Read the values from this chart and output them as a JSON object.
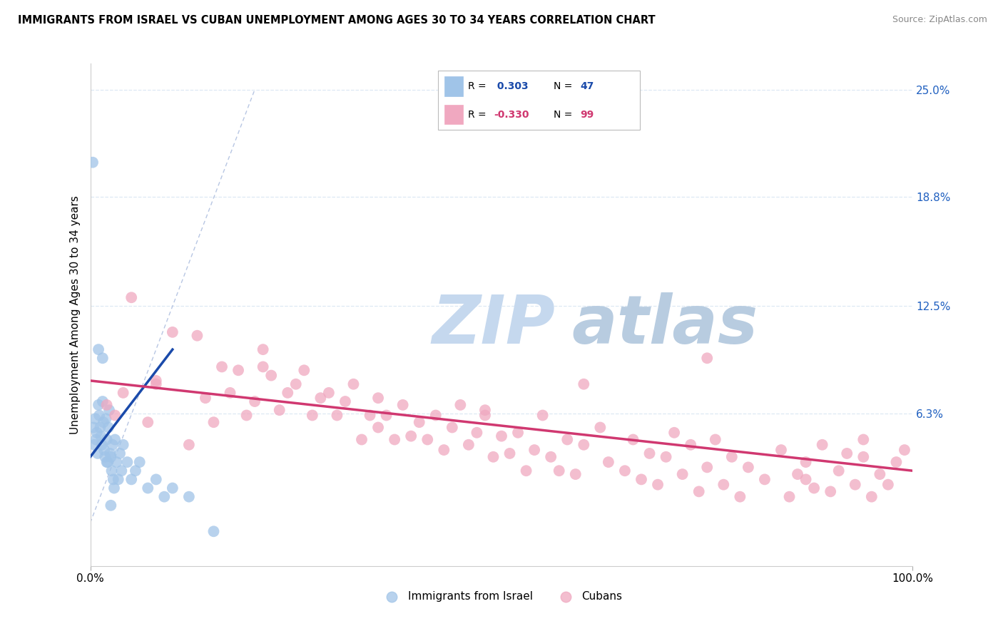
{
  "title": "IMMIGRANTS FROM ISRAEL VS CUBAN UNEMPLOYMENT AMONG AGES 30 TO 34 YEARS CORRELATION CHART",
  "source": "Source: ZipAtlas.com",
  "ylabel": "Unemployment Among Ages 30 to 34 years",
  "right_yticklabels": [
    "6.3%",
    "12.5%",
    "18.8%",
    "25.0%"
  ],
  "right_ytick_values": [
    0.063,
    0.125,
    0.188,
    0.25
  ],
  "blue_scatter_color": "#a0c4e8",
  "pink_scatter_color": "#f0a8c0",
  "blue_trend_color": "#1a4aaa",
  "pink_trend_color": "#d03870",
  "diag_color": "#b0c0e0",
  "watermark_color": "#d0dff0",
  "xmin": 0.0,
  "xmax": 100.0,
  "ymin": -0.025,
  "ymax": 0.265,
  "grid_color": "#dde8f4",
  "label_israel": "Immigrants from Israel",
  "label_cubans": "Cubans",
  "blue_r": " 0.303",
  "blue_n": "47",
  "pink_r": "-0.330",
  "pink_n": "99",
  "israel_x": [
    0.3,
    0.4,
    0.5,
    0.6,
    0.7,
    0.8,
    0.9,
    1.0,
    1.1,
    1.2,
    1.3,
    1.4,
    1.5,
    1.6,
    1.7,
    1.8,
    1.9,
    2.0,
    2.1,
    2.2,
    2.3,
    2.4,
    2.5,
    2.6,
    2.7,
    2.8,
    2.9,
    3.0,
    3.2,
    3.4,
    3.6,
    3.8,
    4.0,
    4.5,
    5.0,
    5.5,
    6.0,
    7.0,
    8.0,
    9.0,
    10.0,
    12.0,
    15.0,
    1.0,
    1.5,
    2.0,
    2.5
  ],
  "israel_y": [
    0.208,
    0.055,
    0.045,
    0.06,
    0.048,
    0.052,
    0.04,
    0.068,
    0.062,
    0.055,
    0.05,
    0.045,
    0.07,
    0.058,
    0.042,
    0.038,
    0.06,
    0.048,
    0.035,
    0.055,
    0.065,
    0.04,
    0.038,
    0.03,
    0.045,
    0.025,
    0.02,
    0.048,
    0.035,
    0.025,
    0.04,
    0.03,
    0.045,
    0.035,
    0.025,
    0.03,
    0.035,
    0.02,
    0.025,
    0.015,
    0.02,
    0.015,
    -0.005,
    0.1,
    0.095,
    0.035,
    0.01
  ],
  "cuba_x": [
    2,
    4,
    5,
    7,
    8,
    10,
    12,
    13,
    15,
    16,
    17,
    18,
    19,
    20,
    21,
    22,
    23,
    24,
    25,
    26,
    27,
    28,
    29,
    30,
    31,
    32,
    33,
    34,
    35,
    36,
    37,
    38,
    39,
    40,
    41,
    42,
    43,
    44,
    45,
    46,
    47,
    48,
    49,
    50,
    51,
    52,
    53,
    54,
    55,
    56,
    57,
    58,
    59,
    60,
    62,
    63,
    65,
    66,
    67,
    68,
    69,
    70,
    71,
    72,
    73,
    74,
    75,
    76,
    77,
    78,
    79,
    80,
    82,
    84,
    85,
    86,
    87,
    88,
    89,
    90,
    91,
    92,
    93,
    94,
    95,
    96,
    97,
    98,
    99,
    3,
    8,
    14,
    21,
    35,
    48,
    60,
    75,
    87,
    94
  ],
  "cuba_y": [
    0.068,
    0.075,
    0.13,
    0.058,
    0.08,
    0.11,
    0.045,
    0.108,
    0.058,
    0.09,
    0.075,
    0.088,
    0.062,
    0.07,
    0.09,
    0.085,
    0.065,
    0.075,
    0.08,
    0.088,
    0.062,
    0.072,
    0.075,
    0.062,
    0.07,
    0.08,
    0.048,
    0.062,
    0.072,
    0.062,
    0.048,
    0.068,
    0.05,
    0.058,
    0.048,
    0.062,
    0.042,
    0.055,
    0.068,
    0.045,
    0.052,
    0.062,
    0.038,
    0.05,
    0.04,
    0.052,
    0.03,
    0.042,
    0.062,
    0.038,
    0.03,
    0.048,
    0.028,
    0.045,
    0.055,
    0.035,
    0.03,
    0.048,
    0.025,
    0.04,
    0.022,
    0.038,
    0.052,
    0.028,
    0.045,
    0.018,
    0.032,
    0.048,
    0.022,
    0.038,
    0.015,
    0.032,
    0.025,
    0.042,
    0.015,
    0.028,
    0.035,
    0.02,
    0.045,
    0.018,
    0.03,
    0.04,
    0.022,
    0.038,
    0.015,
    0.028,
    0.022,
    0.035,
    0.042,
    0.062,
    0.082,
    0.072,
    0.1,
    0.055,
    0.065,
    0.08,
    0.095,
    0.025,
    0.048
  ]
}
